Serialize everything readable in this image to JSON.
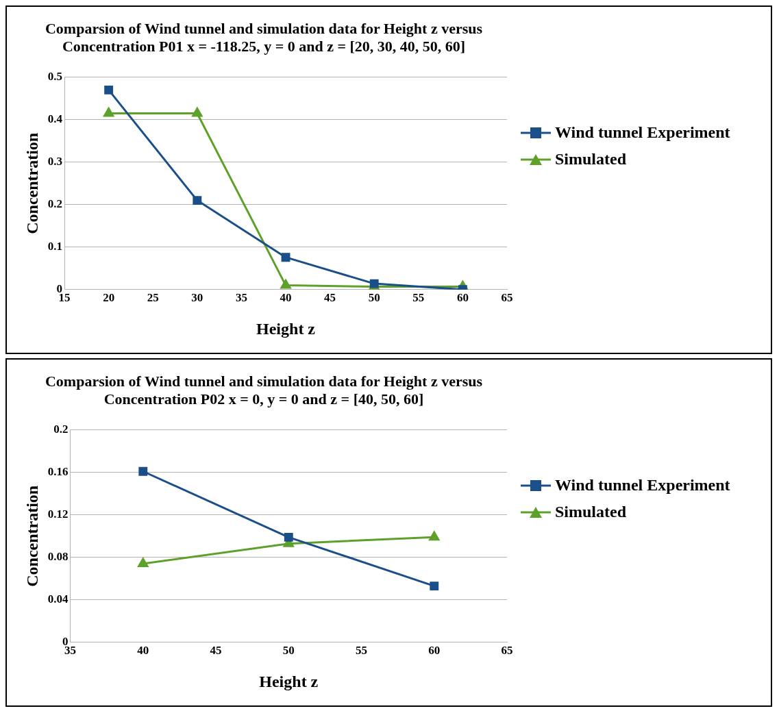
{
  "chart_data": [
    {
      "type": "line",
      "title": "Comparsion of Wind tunnel and simulation data for Height z versus\nConcentration P01 x = -118.25, y = 0 and z = [20, 30, 40, 50, 60]",
      "xlabel": "Height z",
      "ylabel": "Concentration",
      "x": [
        20,
        30,
        40,
        50,
        60
      ],
      "xlim": [
        15,
        65
      ],
      "xticks": [
        15,
        20,
        25,
        30,
        35,
        40,
        45,
        50,
        55,
        60,
        65
      ],
      "ylim": [
        0,
        0.5
      ],
      "yticks": [
        0,
        0.1,
        0.2,
        0.3,
        0.4,
        0.5
      ],
      "grid": "y",
      "legend": "right",
      "series": [
        {
          "name": "Wind tunnel Experiment",
          "color": "#1b4f8a",
          "marker": "square",
          "values": [
            0.47,
            0.21,
            0.076,
            0.014,
            0.0
          ]
        },
        {
          "name": "Simulated",
          "color": "#5ea12a",
          "marker": "triangle",
          "values": [
            0.415,
            0.415,
            0.01,
            0.007,
            0.007
          ]
        }
      ]
    },
    {
      "type": "line",
      "title": "Comparsion of Wind tunnel and simulation data for Height z versus\nConcentration P02 x = 0, y = 0 and z = [40, 50, 60]",
      "xlabel": "Height z",
      "ylabel": "Concentration",
      "x": [
        40,
        50,
        60
      ],
      "xlim": [
        35,
        65
      ],
      "xticks": [
        35,
        40,
        45,
        50,
        55,
        60,
        65
      ],
      "ylim": [
        0,
        0.2
      ],
      "yticks": [
        0,
        0.04,
        0.08,
        0.12,
        0.16,
        0.2
      ],
      "grid": "y",
      "legend": "right",
      "series": [
        {
          "name": "Wind tunnel Experiment",
          "color": "#1b4f8a",
          "marker": "square",
          "values": [
            0.161,
            0.099,
            0.053
          ]
        },
        {
          "name": "Simulated",
          "color": "#5ea12a",
          "marker": "triangle",
          "values": [
            0.074,
            0.093,
            0.099
          ]
        }
      ]
    }
  ]
}
